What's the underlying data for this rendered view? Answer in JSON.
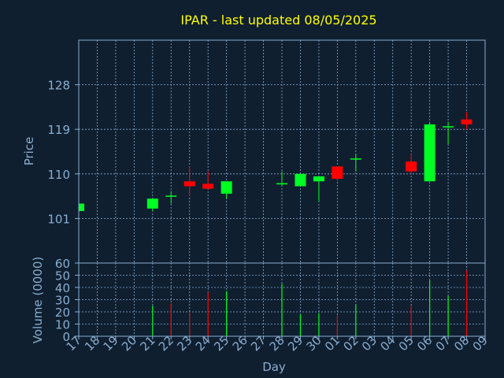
{
  "title": "IPAR - last updated 08/05/2025",
  "colors": {
    "background": "#0f1f30",
    "title": "#ffff00",
    "axis_text": "#8aaed0",
    "frame": "#8aaed0",
    "grid": "#8aaed0",
    "up": "#00ff22",
    "down": "#ff0000"
  },
  "chart_data": [
    {
      "type": "candlestick",
      "title": "IPAR - last updated 08/05/2025",
      "ylabel": "Price",
      "ylim": [
        92,
        137
      ],
      "yticks": [
        101,
        110,
        119,
        128
      ],
      "grid": true,
      "categories": [
        "17",
        "18",
        "19",
        "20",
        "21",
        "22",
        "23",
        "24",
        "25",
        "26",
        "27",
        "28",
        "29",
        "30",
        "01",
        "02",
        "03",
        "04",
        "05",
        "06",
        "07",
        "08",
        "09"
      ],
      "candles": [
        {
          "x": "17",
          "open": 102.5,
          "high": 104.0,
          "low": 102.5,
          "close": 104.0
        },
        {
          "x": "21",
          "open": 103.0,
          "high": 105.0,
          "low": 102.5,
          "close": 105.0
        },
        {
          "x": "22",
          "open": 105.5,
          "high": 106.5,
          "low": 104.0,
          "close": 105.5
        },
        {
          "x": "23",
          "open": 108.5,
          "high": 111.5,
          "low": 105.5,
          "close": 107.5
        },
        {
          "x": "24",
          "open": 108.0,
          "high": 110.5,
          "low": 107.0,
          "close": 107.0
        },
        {
          "x": "25",
          "open": 106.0,
          "high": 108.5,
          "low": 105.0,
          "close": 108.5
        },
        {
          "x": "28",
          "open": 108.0,
          "high": 110.5,
          "low": 107.5,
          "close": 108.0
        },
        {
          "x": "29",
          "open": 107.5,
          "high": 110.0,
          "low": 107.5,
          "close": 110.0
        },
        {
          "x": "30",
          "open": 108.5,
          "high": 109.5,
          "low": 104.5,
          "close": 109.5
        },
        {
          "x": "01",
          "open": 111.5,
          "high": 111.5,
          "low": 108.5,
          "close": 109.0
        },
        {
          "x": "02",
          "open": 113.0,
          "high": 114.0,
          "low": 110.5,
          "close": 113.0
        },
        {
          "x": "05",
          "open": 112.5,
          "high": 114.0,
          "low": 110.0,
          "close": 110.5
        },
        {
          "x": "06",
          "open": 108.5,
          "high": 120.5,
          "low": 108.5,
          "close": 120.0
        },
        {
          "x": "07",
          "open": 119.5,
          "high": 120.5,
          "low": 116.0,
          "close": 119.5
        },
        {
          "x": "08",
          "open": 121.0,
          "high": 122.5,
          "low": 119.0,
          "close": 120.0
        }
      ]
    },
    {
      "type": "bar",
      "ylabel": "Volume (0000)",
      "xlabel": "Day",
      "ylim": [
        0,
        60
      ],
      "yticks": [
        0,
        10,
        20,
        30,
        40,
        50,
        60
      ],
      "grid": true,
      "categories": [
        "17",
        "18",
        "19",
        "20",
        "21",
        "22",
        "23",
        "24",
        "25",
        "26",
        "27",
        "28",
        "29",
        "30",
        "01",
        "02",
        "03",
        "04",
        "05",
        "06",
        "07",
        "08",
        "09"
      ],
      "values": [
        {
          "x": "21",
          "value": 25,
          "direction": "up"
        },
        {
          "x": "22",
          "value": 27,
          "direction": "down"
        },
        {
          "x": "23",
          "value": 20,
          "direction": "down"
        },
        {
          "x": "24",
          "value": 36,
          "direction": "down"
        },
        {
          "x": "25",
          "value": 37,
          "direction": "up"
        },
        {
          "x": "28",
          "value": 43,
          "direction": "up"
        },
        {
          "x": "29",
          "value": 18,
          "direction": "up"
        },
        {
          "x": "30",
          "value": 19,
          "direction": "up"
        },
        {
          "x": "01",
          "value": 17,
          "direction": "down"
        },
        {
          "x": "02",
          "value": 26,
          "direction": "up"
        },
        {
          "x": "05",
          "value": 25,
          "direction": "down"
        },
        {
          "x": "06",
          "value": 46,
          "direction": "up"
        },
        {
          "x": "07",
          "value": 33,
          "direction": "up"
        },
        {
          "x": "08",
          "value": 54,
          "direction": "down"
        }
      ]
    }
  ]
}
